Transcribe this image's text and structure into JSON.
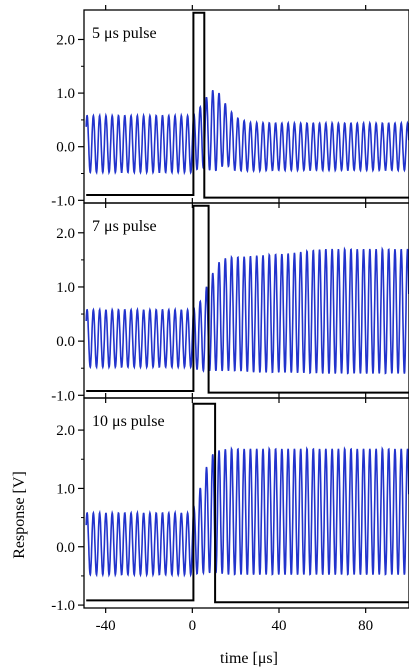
{
  "figure": {
    "ylabel": "Response [V]",
    "xlabel": "time [μs]"
  },
  "chart_data": [
    {
      "type": "line",
      "title": "5 μs pulse",
      "xlim": [
        -50,
        100
      ],
      "ylim": [
        -1.05,
        2.55
      ],
      "x_ticks": [
        -40,
        0,
        40,
        80
      ],
      "y_ticks": [
        -1.0,
        0.0,
        1.0,
        2.0
      ],
      "y_tick_labels": [
        "-1.0",
        "0.0",
        "1.0",
        "2.0"
      ],
      "series": [
        {
          "color": "#2233cc",
          "kind": "oscillation",
          "period_us": 2.9,
          "x": [
            -48,
            0,
            3,
            6,
            10,
            13,
            16,
            20,
            26,
            30,
            40,
            60,
            80,
            100
          ],
          "center": [
            0.05,
            0.05,
            0.15,
            0.25,
            0.3,
            0.3,
            0.2,
            0.05,
            0.0,
            0.0,
            0.0,
            0.0,
            0.0,
            0.0
          ],
          "amplitude": [
            0.53,
            0.53,
            0.55,
            0.65,
            0.78,
            0.68,
            0.55,
            0.5,
            0.45,
            0.45,
            0.44,
            0.44,
            0.44,
            0.44
          ]
        },
        {
          "color": "#000000",
          "kind": "pulse",
          "baseline": -0.9,
          "high": 2.5,
          "x_rise": 0.5,
          "x_fall": 5.5,
          "after_pulse": -0.95
        }
      ]
    },
    {
      "type": "line",
      "title": "7 μs pulse",
      "xlim": [
        -50,
        100
      ],
      "ylim": [
        -1.05,
        2.55
      ],
      "x_ticks": [
        -40,
        0,
        40,
        80
      ],
      "y_ticks": [
        -1.0,
        0.0,
        1.0,
        2.0
      ],
      "y_tick_labels": [
        "-1.0",
        "0.0",
        "1.0",
        "2.0"
      ],
      "series": [
        {
          "color": "#2233cc",
          "kind": "oscillation",
          "period_us": 2.9,
          "x": [
            -48,
            0,
            4,
            8,
            12,
            16,
            20,
            30,
            45,
            60,
            80,
            100
          ],
          "center": [
            0.05,
            0.05,
            0.1,
            0.3,
            0.45,
            0.5,
            0.5,
            0.5,
            0.52,
            0.55,
            0.55,
            0.55
          ],
          "amplitude": [
            0.53,
            0.53,
            0.65,
            0.85,
            1.0,
            1.05,
            1.05,
            1.08,
            1.1,
            1.15,
            1.15,
            1.15
          ]
        },
        {
          "color": "#000000",
          "kind": "pulse",
          "baseline": -0.92,
          "high": 2.5,
          "x_rise": 0.5,
          "x_fall": 7.5,
          "after_pulse": -0.95
        }
      ]
    },
    {
      "type": "line",
      "title": "10 μs pulse",
      "ylabel": "Response [V]",
      "xlim": [
        -50,
        100
      ],
      "ylim": [
        -1.05,
        2.55
      ],
      "x_ticks": [
        -40,
        0,
        40,
        80
      ],
      "y_ticks": [
        -1.0,
        0.0,
        1.0,
        2.0
      ],
      "y_tick_labels": [
        "-1.0",
        "0.0",
        "1.0",
        "2.0"
      ],
      "series": [
        {
          "color": "#2233cc",
          "kind": "oscillation",
          "period_us": 2.9,
          "x": [
            -48,
            0,
            4,
            8,
            12,
            16,
            20,
            40,
            60,
            80,
            100
          ],
          "center": [
            0.05,
            0.05,
            0.3,
            0.55,
            0.6,
            0.6,
            0.6,
            0.6,
            0.6,
            0.6,
            0.6
          ],
          "amplitude": [
            0.53,
            0.53,
            0.75,
            1.0,
            1.05,
            1.08,
            1.08,
            1.08,
            1.08,
            1.08,
            1.08
          ]
        },
        {
          "color": "#000000",
          "kind": "pulse",
          "baseline": -0.92,
          "high": 2.45,
          "x_rise": 0.5,
          "x_fall": 10.5,
          "after_pulse": -0.95
        }
      ],
      "x_tick_labels": [
        "-40",
        "0",
        "40",
        "80"
      ]
    }
  ]
}
